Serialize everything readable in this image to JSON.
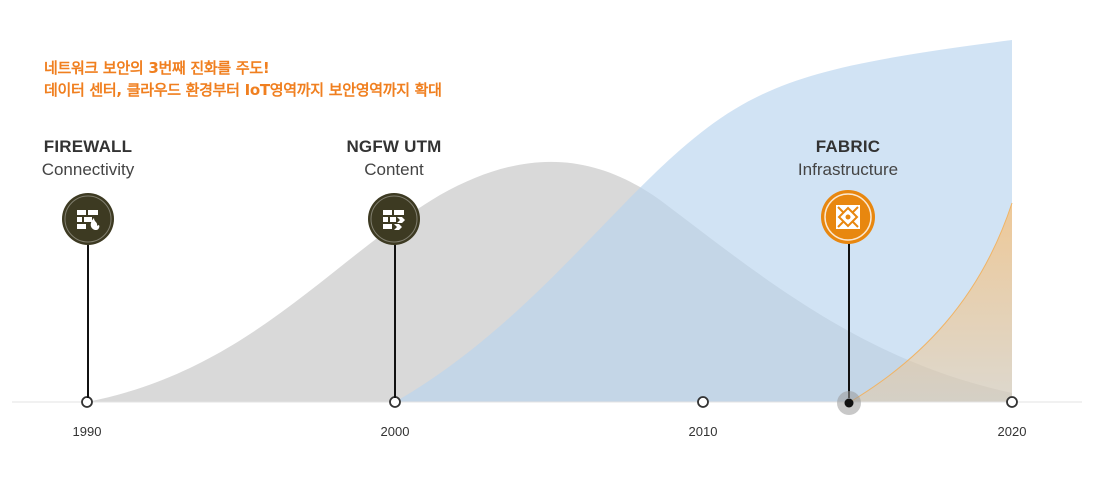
{
  "headline": {
    "line1": "네트워크 보안의 3번째 진화를 주도!",
    "line2": "데이터 센터, 클라우드 환경부터 IoT영역까지 보안영역까지 확대"
  },
  "stages": [
    {
      "title": "FIREWALL",
      "subtitle": "Connectivity",
      "year": 1990,
      "icon": "firewall-fire-icon",
      "color": "#3d3a22"
    },
    {
      "title": "NGFW UTM",
      "subtitle": "Content",
      "year": 2000,
      "icon": "firewall-content-icon",
      "color": "#3d3a22"
    },
    {
      "title": "FABRIC",
      "subtitle": "Infrastructure",
      "year": 2015,
      "icon": "fabric-icon",
      "color": "#e8870f"
    }
  ],
  "timeline": {
    "ticks": [
      "1990",
      "2000",
      "2010",
      "2020"
    ],
    "domain": [
      1990,
      2020
    ]
  },
  "colors": {
    "headline": "#f07f1f",
    "gray_wave": "#d9d9d9",
    "blue_wave": "#cfe1f2",
    "orange_wave": "#f3c488",
    "axis": "#dddddd"
  }
}
